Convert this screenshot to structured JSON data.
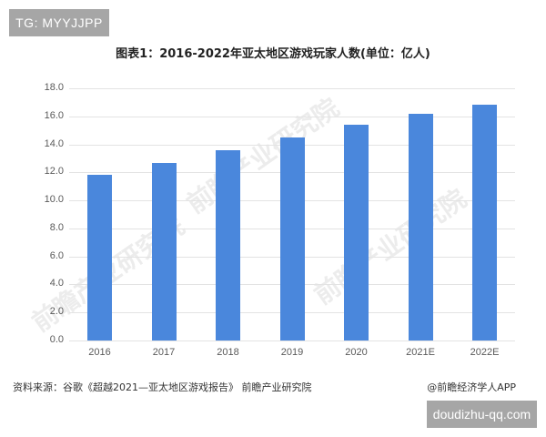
{
  "header": {
    "badge": "TG: MYYJJPP"
  },
  "chart": {
    "title": "图表1：2016-2022年亚太地区游戏玩家人数(单位：亿人)"
  },
  "footer": {
    "source": "资料来源：谷歌《超越2021—亚太地区游戏报告》 前瞻产业研究院",
    "credit": "@前瞻经济学人APP",
    "site_badge": "doudizhu-qq.com"
  },
  "watermark": "前瞻产业研究院",
  "colors": {
    "bar": "#4a87dc",
    "grid": "#e3e3e3",
    "badge": "#a6a6a6"
  },
  "chart_data": {
    "type": "bar",
    "title": "图表1：2016-2022年亚太地区游戏玩家人数(单位：亿人)",
    "xlabel": "",
    "ylabel": "亿人",
    "categories": [
      "2016",
      "2017",
      "2018",
      "2019",
      "2020",
      "2021E",
      "2022E"
    ],
    "values": [
      11.8,
      12.7,
      13.6,
      14.5,
      15.4,
      16.2,
      16.8
    ],
    "ylim": [
      0,
      18
    ],
    "yticks": [
      "0.0",
      "2.0",
      "4.0",
      "6.0",
      "8.0",
      "10.0",
      "12.0",
      "14.0",
      "16.0",
      "18.0"
    ],
    "grid": true,
    "legend": "none"
  }
}
